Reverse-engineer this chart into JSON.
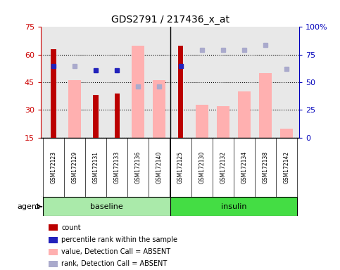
{
  "title": "GDS2791 / 217436_x_at",
  "samples": [
    "GSM172123",
    "GSM172129",
    "GSM172131",
    "GSM172133",
    "GSM172136",
    "GSM172140",
    "GSM172125",
    "GSM172130",
    "GSM172132",
    "GSM172134",
    "GSM172138",
    "GSM172142"
  ],
  "groups": [
    "baseline",
    "baseline",
    "baseline",
    "baseline",
    "baseline",
    "baseline",
    "insulin",
    "insulin",
    "insulin",
    "insulin",
    "insulin",
    "insulin"
  ],
  "left_ylim": [
    15,
    75
  ],
  "left_yticks": [
    15,
    30,
    45,
    60,
    75
  ],
  "right_ylim": [
    0,
    100
  ],
  "right_yticks": [
    0,
    25,
    50,
    75,
    100
  ],
  "right_yticklabels": [
    "0",
    "25",
    "50",
    "75",
    "100%"
  ],
  "count_bars": [
    63,
    null,
    38,
    39,
    null,
    null,
    65,
    null,
    null,
    null,
    null,
    null
  ],
  "absent_value_bars": [
    null,
    46,
    null,
    null,
    65,
    46,
    null,
    33,
    32,
    40,
    50,
    20
  ],
  "rank_dots_dark": [
    65,
    null,
    61,
    61,
    null,
    null,
    65,
    null,
    null,
    null,
    null,
    null
  ],
  "rank_dots_light": [
    null,
    65,
    null,
    null,
    46,
    46,
    null,
    79,
    79,
    79,
    84,
    62
  ],
  "bar_color_count": "#bb0000",
  "bar_color_absent_value": "#ffb0b0",
  "dot_color_dark": "#2222bb",
  "dot_color_light": "#aaaacc",
  "bg_plot": "#e8e8e8",
  "bg_xticklabels": "#cccccc",
  "bg_group_baseline": "#aaeaaa",
  "bg_group_insulin": "#44dd44",
  "left_label_color": "#cc0000",
  "right_label_color": "#0000bb",
  "legend_items": [
    {
      "label": "count",
      "color": "#bb0000"
    },
    {
      "label": "percentile rank within the sample",
      "color": "#2222bb"
    },
    {
      "label": "value, Detection Call = ABSENT",
      "color": "#ffb0b0"
    },
    {
      "label": "rank, Detection Call = ABSENT",
      "color": "#aaaacc"
    }
  ]
}
